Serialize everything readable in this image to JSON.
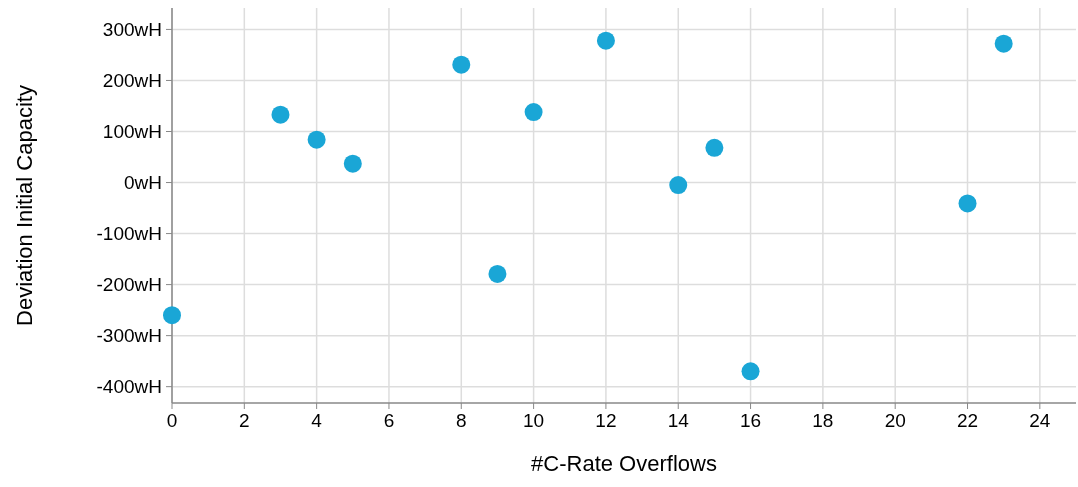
{
  "chart_data": {
    "type": "scatter",
    "xlabel": "#C-Rate Overflows",
    "ylabel": "Deviation Initial Capacity",
    "x": [
      0,
      3,
      4,
      5,
      8,
      9,
      10,
      12,
      14,
      15,
      16,
      22,
      23
    ],
    "series": [
      {
        "color": "#1aa6d6",
        "values": [
          -260,
          133,
          84,
          37,
          231,
          -179,
          138,
          278,
          -5,
          68,
          -370,
          -41,
          272
        ]
      }
    ],
    "xlim": [
      0,
      25
    ],
    "xticks": [
      0,
      2,
      4,
      6,
      8,
      10,
      12,
      14,
      16,
      18,
      20,
      22,
      24
    ],
    "ylim": [
      -432,
      342
    ],
    "yticks": [
      {
        "value": -400,
        "label": "-400wH"
      },
      {
        "value": -300,
        "label": "-300wH"
      },
      {
        "value": -200,
        "label": "-200wH"
      },
      {
        "value": -100,
        "label": "-100wH"
      },
      {
        "value": 0,
        "label": "0wH"
      },
      {
        "value": 100,
        "label": "100wH"
      },
      {
        "value": 200,
        "label": "200wH"
      },
      {
        "value": 300,
        "label": "300wH"
      }
    ],
    "grid": true,
    "marker": "circle"
  }
}
